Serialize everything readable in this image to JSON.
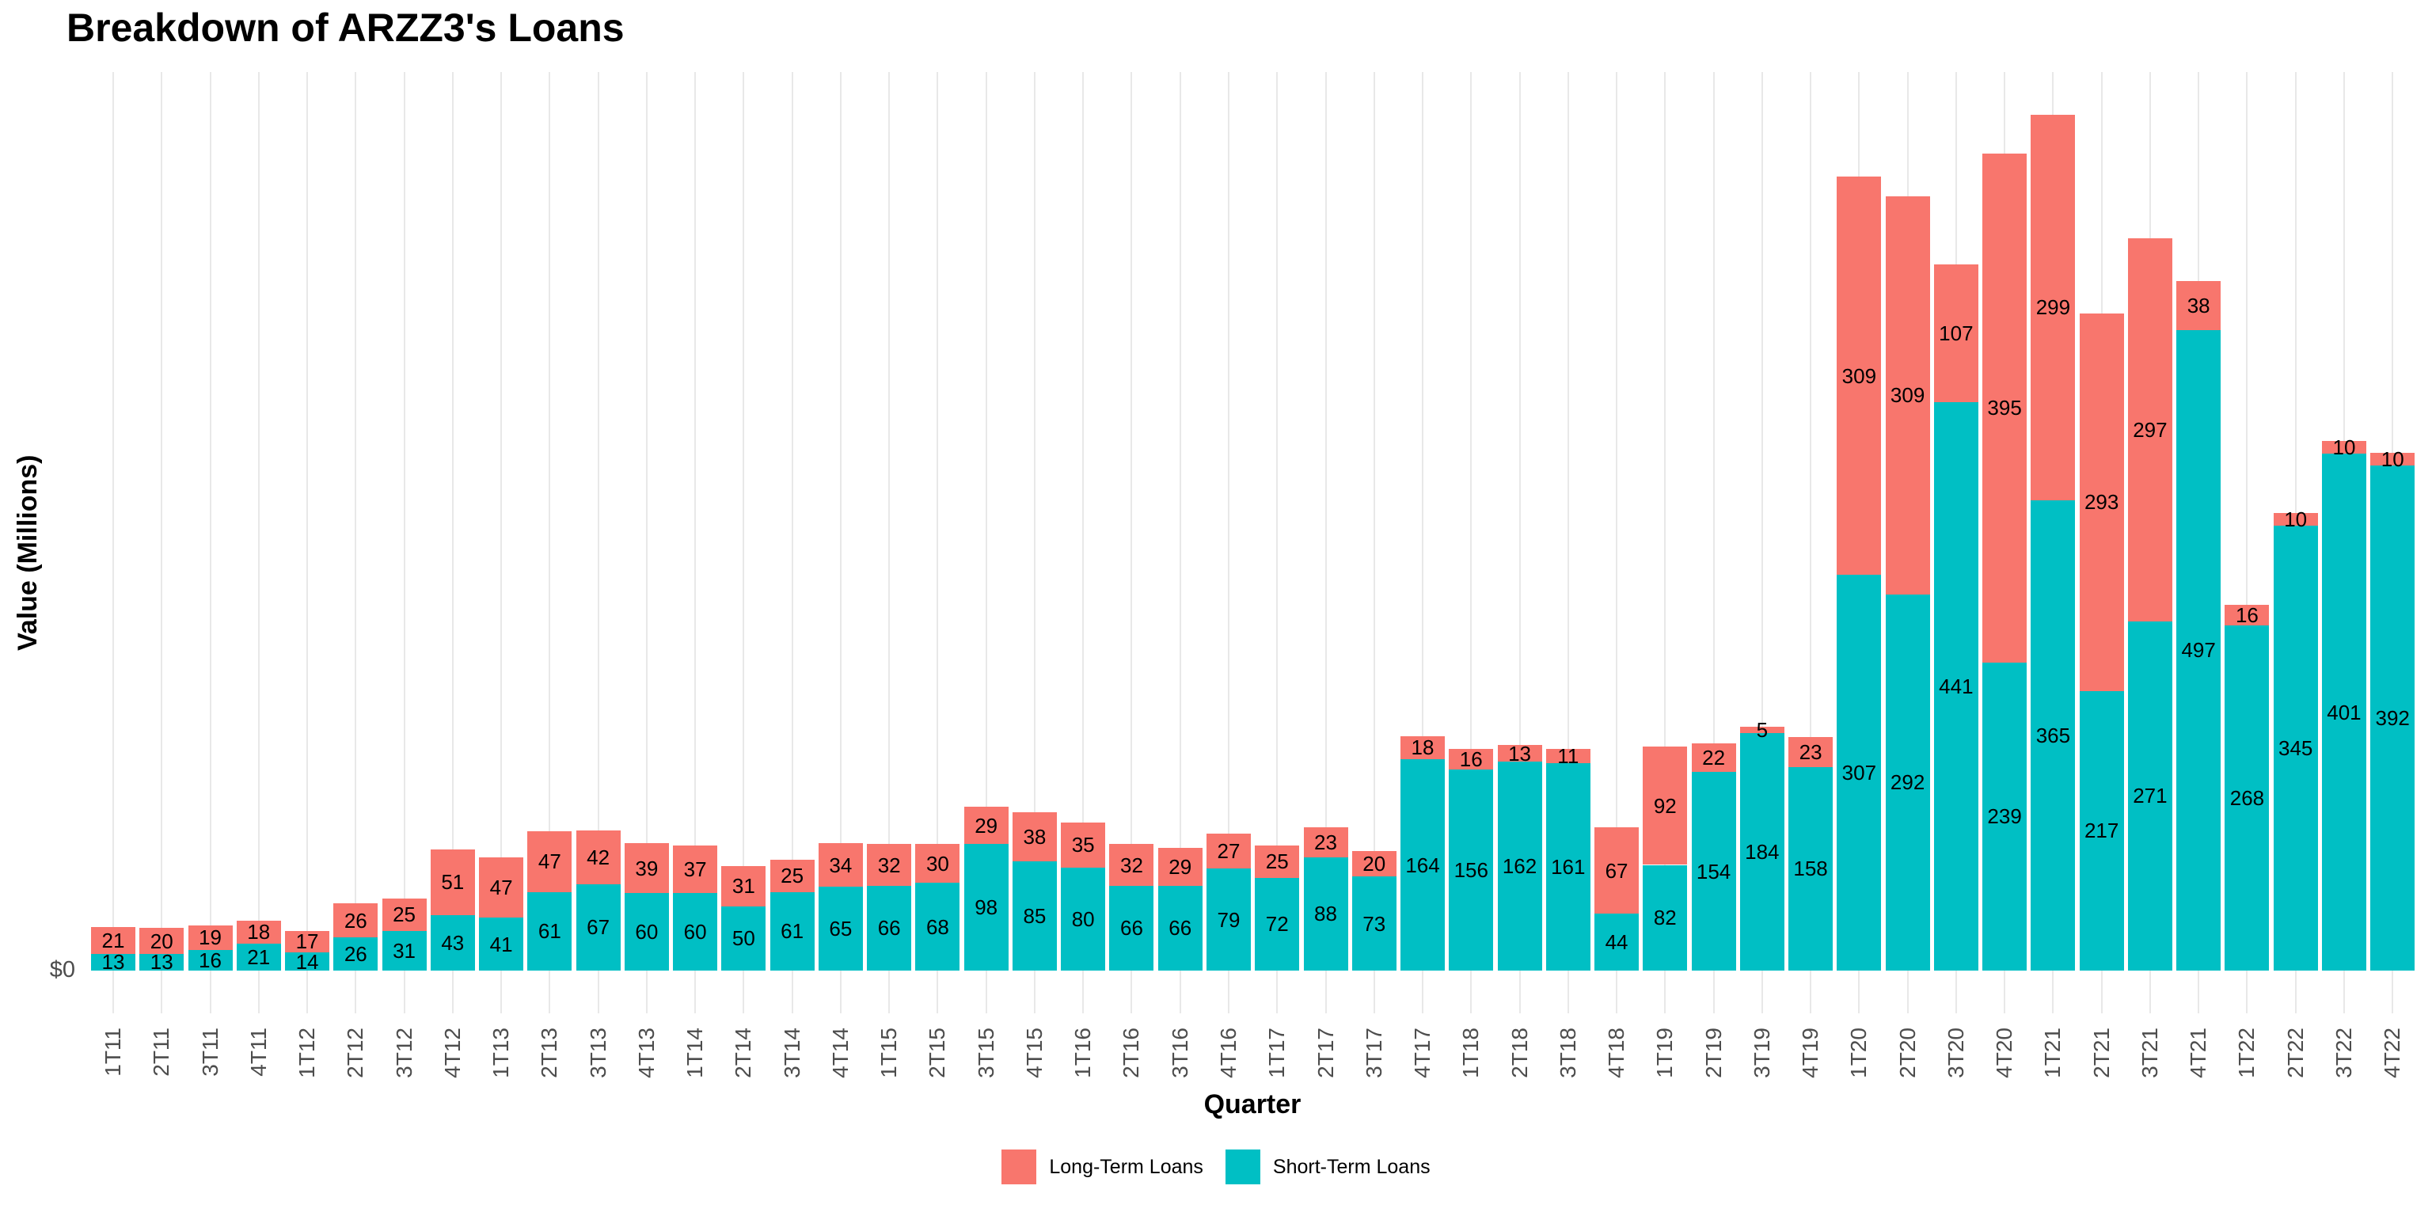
{
  "title": "Breakdown of ARZZ3's Loans",
  "x_axis": {
    "title": "Quarter"
  },
  "y_axis": {
    "title": "Value (Millions)",
    "tick_labels": [
      "$0"
    ]
  },
  "legend": {
    "items": [
      {
        "label": "Long-Term Loans",
        "color": "#F8766D"
      },
      {
        "label": "Short-Term Loans",
        "color": "#00BFC4"
      }
    ]
  },
  "colors": {
    "long_term": "#F8766D",
    "short_term": "#00BFC4",
    "grid": "#E8E8E8",
    "axis_text": "#4D4D4D",
    "bar_label": "#000000",
    "background": "#FFFFFF"
  },
  "chart_data": {
    "type": "bar",
    "stacked": true,
    "title": "Breakdown of ARZZ3's Loans",
    "xlabel": "Quarter",
    "ylabel": "Value (Millions)",
    "grid": "vertical-major",
    "legend_position": "bottom",
    "bar_value_labels": true,
    "ylim": [
      0,
      700
    ],
    "y_ticks_shown": [
      "$0"
    ],
    "categories": [
      "1T11",
      "2T11",
      "3T11",
      "4T11",
      "1T12",
      "2T12",
      "3T12",
      "4T12",
      "1T13",
      "2T13",
      "3T13",
      "4T13",
      "1T14",
      "2T14",
      "3T14",
      "4T14",
      "1T15",
      "2T15",
      "3T15",
      "4T15",
      "1T16",
      "2T16",
      "3T16",
      "4T16",
      "1T17",
      "2T17",
      "3T17",
      "4T17",
      "1T18",
      "2T18",
      "3T18",
      "4T18",
      "1T19",
      "2T19",
      "3T19",
      "4T19",
      "1T20",
      "2T20",
      "3T20",
      "4T20",
      "1T21",
      "2T21",
      "3T21",
      "4T21",
      "1T22",
      "2T22",
      "3T22",
      "4T22"
    ],
    "series": [
      {
        "name": "Short-Term Loans",
        "color": "#00BFC4",
        "stack_order": "bottom",
        "values": [
          13,
          13,
          16,
          21,
          14,
          26,
          31,
          43,
          41,
          61,
          67,
          60,
          60,
          50,
          61,
          65,
          66,
          68,
          98,
          85,
          80,
          66,
          66,
          79,
          72,
          88,
          73,
          164,
          156,
          162,
          161,
          44,
          82,
          154,
          184,
          158,
          307,
          292,
          441,
          239,
          365,
          217,
          271,
          497,
          268,
          345,
          401,
          392
        ]
      },
      {
        "name": "Long-Term Loans",
        "color": "#F8766D",
        "stack_order": "top",
        "values": [
          21,
          20,
          19,
          18,
          17,
          26,
          25,
          51,
          47,
          47,
          42,
          39,
          37,
          31,
          25,
          34,
          32,
          30,
          29,
          38,
          35,
          32,
          29,
          27,
          25,
          23,
          20,
          18,
          16,
          13,
          11,
          67,
          92,
          22,
          5,
          23,
          309,
          309,
          107,
          395,
          299,
          293,
          297,
          38,
          16,
          10,
          10,
          10
        ]
      }
    ]
  }
}
